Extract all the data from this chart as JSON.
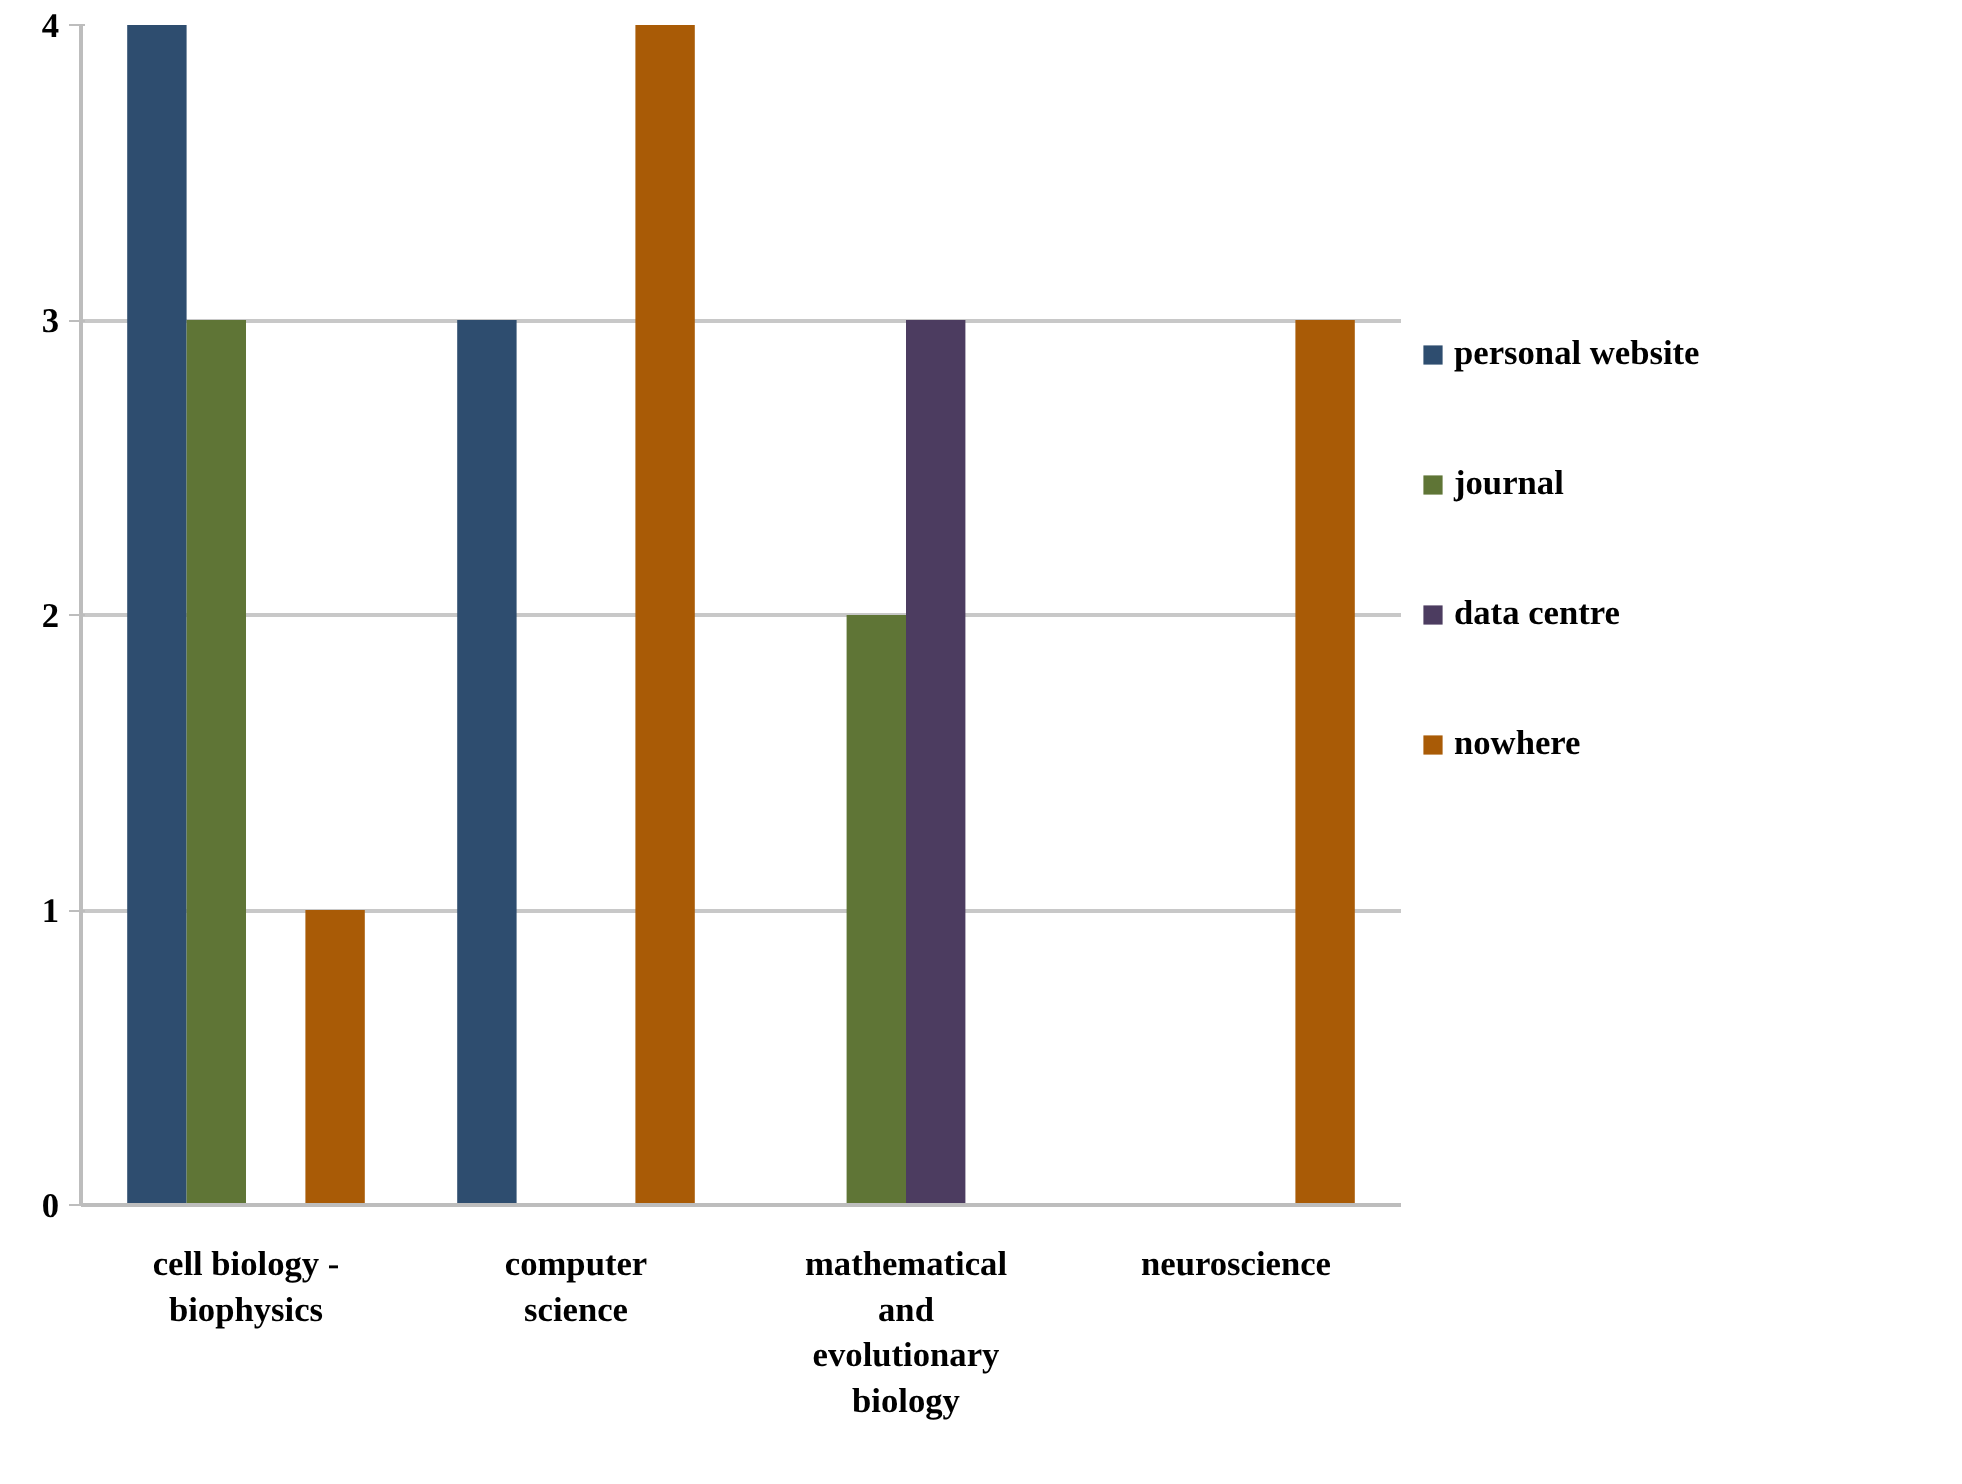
{
  "chart_data": {
    "type": "bar",
    "categories": [
      "cell biology - biophysics",
      "computer science",
      "mathematical and evolutionary biology",
      "neuroscience"
    ],
    "series": [
      {
        "name": "personal website",
        "color": "#2e4d6f",
        "values": [
          4,
          3,
          0,
          0
        ]
      },
      {
        "name": "journal",
        "color": "#5f7536",
        "values": [
          3,
          0,
          2,
          0
        ]
      },
      {
        "name": "data centre",
        "color": "#4c3c60",
        "values": [
          0,
          0,
          3,
          0
        ]
      },
      {
        "name": "nowhere",
        "color": "#a95b06",
        "values": [
          1,
          4,
          0,
          3
        ]
      }
    ],
    "ylim": [
      0,
      4
    ],
    "yticks": [
      0,
      1,
      2,
      3,
      4
    ],
    "grid": "y",
    "legend": "right"
  }
}
